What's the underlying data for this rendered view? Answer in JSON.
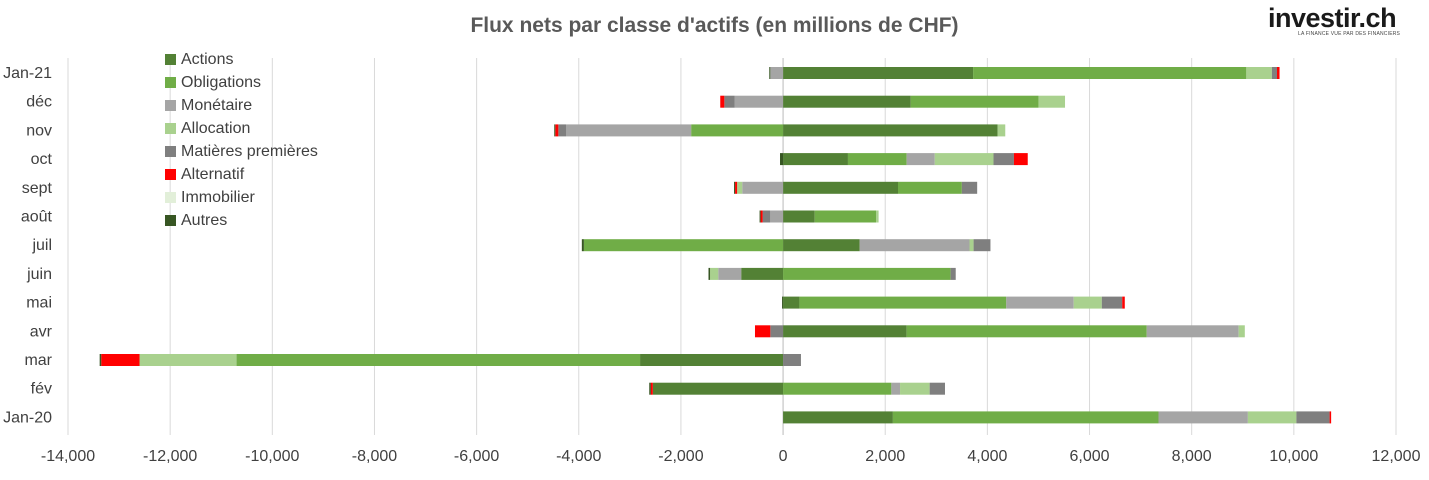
{
  "chart_data": {
    "type": "bar",
    "orientation": "horizontal",
    "stacked": true,
    "title": "Flux nets par classe d'actifs (en millions de CHF)",
    "xlim": [
      -14000,
      12000
    ],
    "x_ticks": [
      "-14,000",
      "-12,000",
      "-10,000",
      "-8,000",
      "-6,000",
      "-4,000",
      "-2,000",
      "0",
      "2,000",
      "4,000",
      "6,000",
      "8,000",
      "10,000",
      "12,000"
    ],
    "categories": [
      "Jan-21",
      "déc",
      "nov",
      "oct",
      "sept",
      "août",
      "juil",
      "juin",
      "mai",
      "avr",
      "mar",
      "fév",
      "Jan-20"
    ],
    "grid": true,
    "legend_position": "top-left",
    "series": [
      {
        "name": "Actions",
        "color": "#538135",
        "values": [
          3720,
          2500,
          4200,
          1270,
          2250,
          620,
          1500,
          -820,
          320,
          2420,
          -2800,
          -2550,
          2150
        ]
      },
      {
        "name": "Obligations",
        "color": "#70ad47",
        "values": [
          5350,
          2500,
          -1800,
          1150,
          1250,
          1200,
          -3900,
          3280,
          4050,
          4700,
          -7900,
          2120,
          5200
        ]
      },
      {
        "name": "Monétaire",
        "color": "#a5a5a5",
        "values": [
          -250,
          -950,
          -2450,
          550,
          -800,
          -250,
          2150,
          -450,
          1320,
          1800,
          0,
          170,
          1750
        ]
      },
      {
        "name": "Allocation",
        "color": "#a9d18e",
        "values": [
          500,
          520,
          150,
          1150,
          -100,
          50,
          80,
          -160,
          550,
          120,
          -1900,
          580,
          950
        ]
      },
      {
        "name": "Matières premières",
        "color": "#7f7f7f",
        "values": [
          100,
          -200,
          -150,
          400,
          300,
          -150,
          330,
          100,
          400,
          -250,
          350,
          300,
          650
        ]
      },
      {
        "name": "Alternatif",
        "color": "#ff0000",
        "values": [
          50,
          -80,
          -60,
          270,
          -40,
          -40,
          0,
          0,
          50,
          -300,
          -750,
          -40,
          30
        ]
      },
      {
        "name": "Immobilier",
        "color": "#e2efd9",
        "values": [
          0,
          0,
          0,
          0,
          0,
          0,
          0,
          0,
          0,
          0,
          0,
          0,
          0
        ]
      },
      {
        "name": "Autres",
        "color": "#375623",
        "values": [
          -20,
          0,
          -20,
          -60,
          -20,
          -20,
          -40,
          -30,
          -20,
          0,
          -30,
          -30,
          0
        ]
      }
    ]
  },
  "logo": {
    "text": "investir.ch",
    "tagline": "LA FINANCE VUE PAR DES FINANCIERS"
  }
}
